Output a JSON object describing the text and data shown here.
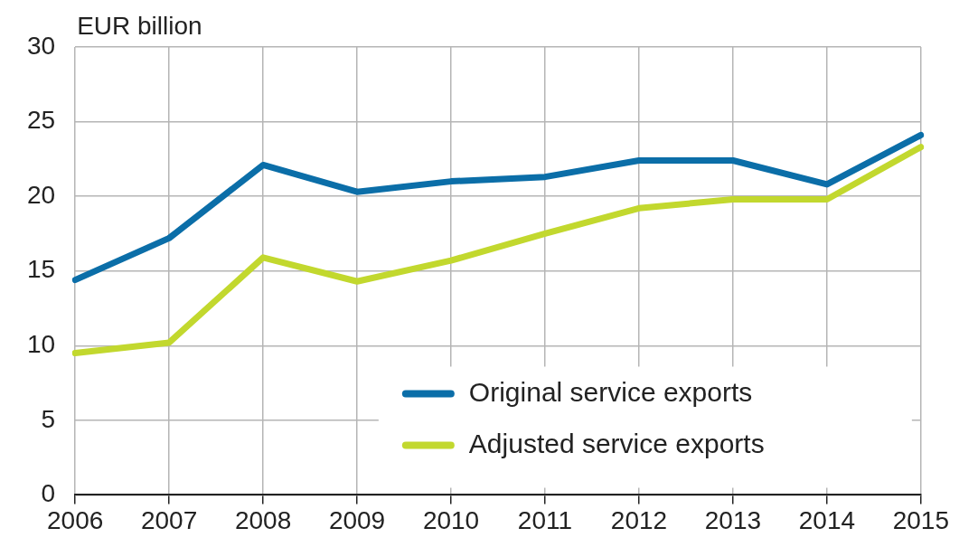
{
  "chart_data": {
    "type": "line",
    "ylabel": "EUR billion",
    "categories": [
      "2006",
      "2007",
      "2008",
      "2009",
      "2010",
      "2011",
      "2012",
      "2013",
      "2014",
      "2015"
    ],
    "series": [
      {
        "name": "Original service exports",
        "color": "#0b6ea8",
        "values": [
          14.4,
          17.2,
          22.1,
          20.3,
          21.0,
          21.3,
          22.4,
          22.4,
          20.8,
          24.1
        ]
      },
      {
        "name": "Adjusted service exports",
        "color": "#c2d82e",
        "values": [
          9.5,
          10.2,
          15.9,
          14.3,
          15.7,
          17.5,
          19.2,
          19.8,
          19.8,
          23.3
        ]
      }
    ],
    "ylim": [
      0,
      30
    ],
    "yticks": [
      0,
      5,
      10,
      15,
      20,
      25,
      30
    ],
    "grid": true,
    "legend": "bottom right",
    "marker": "none",
    "line_style": "solid"
  }
}
